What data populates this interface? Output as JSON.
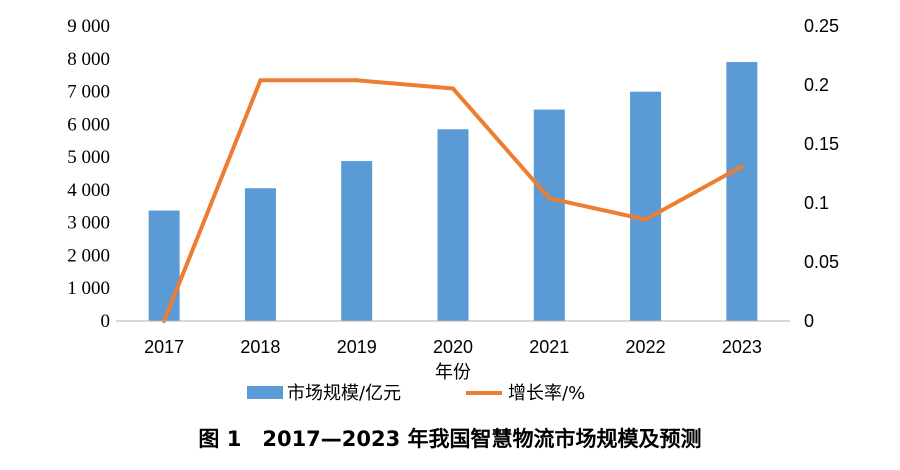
{
  "chart_data": {
    "type": "bar",
    "caption": "图 1　2017—2023 年我国智慧物流市场规模及预测",
    "xlabel": "年份",
    "categories": [
      "2017",
      "2018",
      "2019",
      "2020",
      "2021",
      "2022",
      "2023"
    ],
    "series": [
      {
        "name": "市场规模/亿元",
        "type": "bar",
        "axis": "left",
        "color": "#5B9BD5",
        "values": [
          3370,
          4050,
          4880,
          5850,
          6450,
          6995,
          7900
        ]
      },
      {
        "name": "增长率/%",
        "type": "line",
        "axis": "right",
        "color": "#ED7D31",
        "values": [
          0,
          0.204,
          0.204,
          0.197,
          0.104,
          0.086,
          0.131
        ]
      }
    ],
    "left_axis": {
      "ylim": [
        0,
        9000
      ],
      "ticks": [
        0,
        1000,
        2000,
        3000,
        4000,
        5000,
        6000,
        7000,
        8000,
        9000
      ],
      "tick_labels": [
        "0",
        "1 000",
        "2 000",
        "3 000",
        "4 000",
        "5 000",
        "6 000",
        "7 000",
        "8 000",
        "9 000"
      ]
    },
    "right_axis": {
      "ylim": [
        0,
        0.25
      ],
      "ticks": [
        0,
        0.05,
        0.1,
        0.15,
        0.2,
        0.25
      ],
      "tick_labels": [
        "0",
        "0.05",
        "0.1",
        "0.15",
        "0.2",
        "0.25"
      ]
    },
    "grid": false,
    "legend_position": "bottom"
  }
}
